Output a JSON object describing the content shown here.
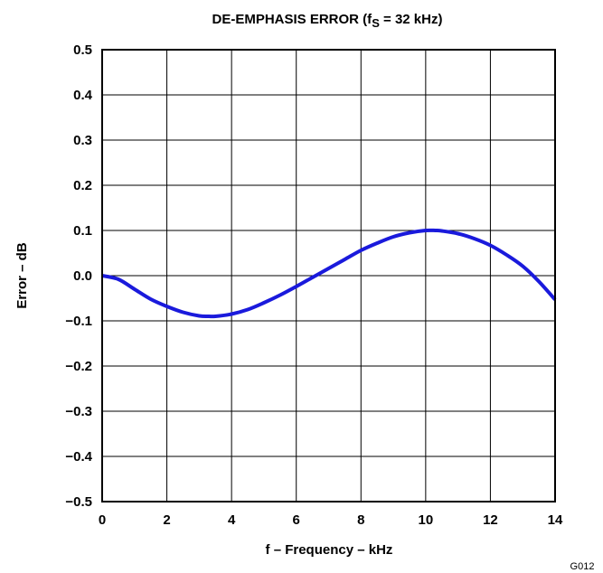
{
  "chart_data": {
    "type": "line",
    "title_main": "DE-EMPHASIS ERROR (f",
    "title_sub": "S",
    "title_tail": " = 32 kHz)",
    "xlabel": "f – Frequency – kHz",
    "ylabel": "Error – dB",
    "xlim": [
      0,
      14
    ],
    "ylim": [
      -0.5,
      0.5
    ],
    "xticks": [
      0,
      2,
      4,
      6,
      8,
      10,
      12,
      14
    ],
    "xtick_labels": [
      "0",
      "2",
      "4",
      "6",
      "8",
      "10",
      "12",
      "14"
    ],
    "yticks": [
      0.5,
      0.4,
      0.3,
      0.2,
      0.1,
      0.0,
      -0.1,
      -0.2,
      -0.3,
      -0.4,
      -0.5
    ],
    "ytick_labels": [
      "0.5",
      "0.4",
      "0.3",
      "0.2",
      "0.1",
      "0.0",
      "−0.1",
      "−0.2",
      "−0.3",
      "−0.4",
      "−0.5"
    ],
    "grid": true,
    "series": [
      {
        "color": "#1a1adc",
        "x": [
          0,
          0.5,
          1,
          1.5,
          2,
          2.5,
          3,
          3.3,
          3.5,
          4,
          4.5,
          5,
          5.5,
          6,
          6.5,
          7,
          7.5,
          8,
          8.5,
          9,
          9.5,
          10,
          10.3,
          10.5,
          11,
          11.5,
          12,
          12.5,
          13,
          13.5,
          14
        ],
        "y": [
          0.0,
          -0.008,
          -0.03,
          -0.052,
          -0.068,
          -0.081,
          -0.089,
          -0.09,
          -0.09,
          -0.085,
          -0.075,
          -0.06,
          -0.043,
          -0.024,
          -0.004,
          0.016,
          0.036,
          0.056,
          0.072,
          0.086,
          0.095,
          0.1,
          0.1,
          0.099,
          0.093,
          0.082,
          0.067,
          0.046,
          0.021,
          -0.013,
          -0.053
        ]
      }
    ]
  },
  "figure_id": "G012"
}
